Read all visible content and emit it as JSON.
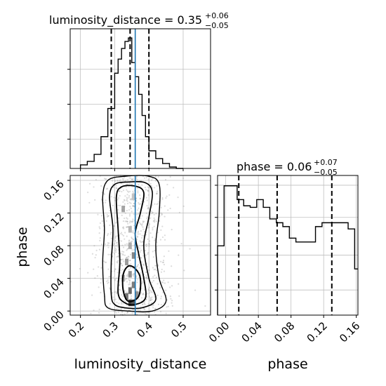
{
  "chart_data": [
    {
      "type": "histogram",
      "title": "luminosity_distance = 0.35",
      "title_sup": "+0.06",
      "title_sub": "−0.05",
      "xlim": [
        0.17,
        0.58
      ],
      "x_ticks": [
        0.2,
        0.3,
        0.4,
        0.5
      ],
      "bin_edges": [
        0.2,
        0.22,
        0.24,
        0.26,
        0.28,
        0.3,
        0.31,
        0.32,
        0.33,
        0.34,
        0.35,
        0.36,
        0.37,
        0.38,
        0.39,
        0.4,
        0.42,
        0.44,
        0.46,
        0.48,
        0.5
      ],
      "counts": [
        5,
        10,
        20,
        45,
        85,
        135,
        155,
        170,
        180,
        185,
        150,
        130,
        105,
        75,
        45,
        25,
        14,
        7,
        2,
        0
      ],
      "quantile_lines": [
        0.29,
        0.345,
        0.4
      ],
      "truth": 0.36,
      "grid": true
    },
    {
      "type": "histogram",
      "title": "phase = 0.06",
      "title_sup": "+0.07",
      "title_sub": "−0.05",
      "xlim": [
        -0.01,
        0.162
      ],
      "x_ticks": [
        0.0,
        0.04,
        0.08,
        0.12,
        0.16
      ],
      "x_tick_labels": [
        "0.00",
        "0.04",
        "0.08",
        "0.12",
        "0.16"
      ],
      "x_label": "phase",
      "bin_edges": [
        -0.01,
        -0.002,
        0.006,
        0.014,
        0.022,
        0.03,
        0.038,
        0.046,
        0.054,
        0.062,
        0.07,
        0.078,
        0.086,
        0.094,
        0.102,
        0.11,
        0.118,
        0.126,
        0.134,
        0.142,
        0.15,
        0.158,
        0.166
      ],
      "counts": [
        90,
        168,
        168,
        150,
        142,
        140,
        150,
        140,
        125,
        120,
        115,
        100,
        95,
        95,
        95,
        115,
        120,
        120,
        120,
        120,
        112,
        60
      ],
      "quantile_lines": [
        0.016,
        0.063,
        0.13
      ],
      "grid": true
    },
    {
      "type": "scatter",
      "subtype": "2d-density-contour",
      "xlim": [
        0.17,
        0.58
      ],
      "ylim": [
        -0.005,
        0.166
      ],
      "x_ticks": [
        0.2,
        0.3,
        0.4,
        0.5
      ],
      "y_ticks": [
        0.0,
        0.04,
        0.08,
        0.12,
        0.16
      ],
      "y_tick_labels": [
        "0.00",
        "0.04",
        "0.08",
        "0.12",
        "0.16"
      ],
      "x_label": "luminosity_distance",
      "y_label": "phase",
      "truth_x": 0.36,
      "contour_levels": [
        [
          [
            0.27,
            0.02
          ],
          [
            0.265,
            0.06
          ],
          [
            0.27,
            0.1
          ],
          [
            0.265,
            0.14
          ],
          [
            0.28,
            0.16
          ],
          [
            0.33,
            0.165
          ],
          [
            0.4,
            0.165
          ],
          [
            0.43,
            0.155
          ],
          [
            0.43,
            0.12
          ],
          [
            0.42,
            0.08
          ],
          [
            0.43,
            0.04
          ],
          [
            0.45,
            0.012
          ],
          [
            0.41,
            0.0
          ],
          [
            0.34,
            0.0
          ],
          [
            0.28,
            0.004
          ]
        ],
        [
          [
            0.29,
            0.02
          ],
          [
            0.29,
            0.06
          ],
          [
            0.295,
            0.1
          ],
          [
            0.285,
            0.14
          ],
          [
            0.3,
            0.155
          ],
          [
            0.34,
            0.158
          ],
          [
            0.39,
            0.157
          ],
          [
            0.41,
            0.145
          ],
          [
            0.4,
            0.115
          ],
          [
            0.385,
            0.08
          ],
          [
            0.4,
            0.04
          ],
          [
            0.42,
            0.014
          ],
          [
            0.38,
            0.004
          ],
          [
            0.33,
            0.004
          ],
          [
            0.3,
            0.008
          ]
        ],
        [
          [
            0.31,
            0.022
          ],
          [
            0.315,
            0.06
          ],
          [
            0.31,
            0.1
          ],
          [
            0.305,
            0.14
          ],
          [
            0.32,
            0.152
          ],
          [
            0.36,
            0.153
          ],
          [
            0.385,
            0.145
          ],
          [
            0.375,
            0.12
          ],
          [
            0.36,
            0.095
          ],
          [
            0.37,
            0.07
          ],
          [
            0.385,
            0.04
          ],
          [
            0.39,
            0.016
          ],
          [
            0.36,
            0.008
          ],
          [
            0.33,
            0.01
          ]
        ],
        [
          [
            0.325,
            0.025
          ],
          [
            0.325,
            0.045
          ],
          [
            0.34,
            0.055
          ],
          [
            0.36,
            0.052
          ],
          [
            0.375,
            0.04
          ],
          [
            0.37,
            0.018
          ],
          [
            0.34,
            0.012
          ]
        ]
      ],
      "density_cells": [
        {
          "x": 0.345,
          "y": 0.01,
          "v": 0.95
        },
        {
          "x": 0.355,
          "y": 0.01,
          "v": 0.85
        },
        {
          "x": 0.335,
          "y": 0.018,
          "v": 0.7
        },
        {
          "x": 0.345,
          "y": 0.025,
          "v": 0.75
        },
        {
          "x": 0.355,
          "y": 0.032,
          "v": 0.65
        },
        {
          "x": 0.345,
          "y": 0.045,
          "v": 0.55
        },
        {
          "x": 0.335,
          "y": 0.06,
          "v": 0.5
        },
        {
          "x": 0.355,
          "y": 0.068,
          "v": 0.6
        },
        {
          "x": 0.345,
          "y": 0.08,
          "v": 0.4
        },
        {
          "x": 0.345,
          "y": 0.1,
          "v": 0.35
        },
        {
          "x": 0.325,
          "y": 0.125,
          "v": 0.45
        },
        {
          "x": 0.355,
          "y": 0.14,
          "v": 0.3
        },
        {
          "x": 0.365,
          "y": 0.02,
          "v": 0.55
        },
        {
          "x": 0.325,
          "y": 0.04,
          "v": 0.4
        }
      ]
    }
  ],
  "colors": {
    "truth": "#1f77b4",
    "axes": "#000000",
    "grid": "#bfbfbf",
    "scatter": "#9a9a9a",
    "contour": "#000000"
  }
}
